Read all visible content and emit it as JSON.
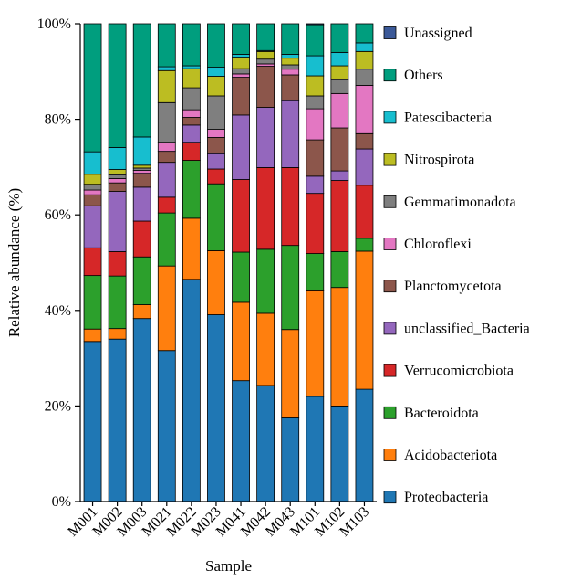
{
  "chart_data": {
    "type": "bar",
    "stacked": true,
    "percent": true,
    "xlabel": "Sample",
    "ylabel": "Relative abundance (%)",
    "ylim": [
      0,
      100
    ],
    "y_ticks": [
      "0%",
      "20%",
      "40%",
      "60%",
      "80%",
      "100%"
    ],
    "y_tick_values": [
      0,
      20,
      40,
      60,
      80,
      100
    ],
    "grid": false,
    "legend_position": "right",
    "categories": [
      "M001",
      "M002",
      "M003",
      "M021",
      "M022",
      "M023",
      "M041",
      "M042",
      "M043",
      "M101",
      "M102",
      "M103"
    ],
    "series": [
      {
        "name": "Proteobacteria",
        "color": "#1f77b4",
        "values": [
          33.5,
          34.0,
          38.3,
          31.6,
          46.5,
          39.1,
          25.3,
          24.3,
          17.5,
          22.0,
          20.0,
          23.5
        ]
      },
      {
        "name": "Acidobacteriota",
        "color": "#ff7f0e",
        "values": [
          2.6,
          2.2,
          2.9,
          17.7,
          12.8,
          13.4,
          16.4,
          15.1,
          18.5,
          22.1,
          24.8,
          28.9
        ]
      },
      {
        "name": "Bacteroidota",
        "color": "#2ca02c",
        "values": [
          11.2,
          11.0,
          10.0,
          11.1,
          12.1,
          14.0,
          10.5,
          13.4,
          17.6,
          7.8,
          7.5,
          2.7
        ]
      },
      {
        "name": "Verrucomicrobiota",
        "color": "#d62728",
        "values": [
          5.8,
          5.1,
          7.5,
          3.3,
          3.8,
          3.1,
          15.2,
          17.1,
          16.3,
          12.6,
          14.9,
          11.1
        ]
      },
      {
        "name": "unclassified_Bacteria",
        "color": "#9467bd",
        "values": [
          8.8,
          12.6,
          7.1,
          7.3,
          3.6,
          3.2,
          13.5,
          12.6,
          14.0,
          3.6,
          2.0,
          7.6
        ]
      },
      {
        "name": "Planctomycetota",
        "color": "#8c564b",
        "values": [
          2.3,
          1.8,
          2.9,
          2.3,
          1.6,
          3.4,
          7.9,
          8.6,
          5.4,
          7.6,
          9.0,
          3.2
        ]
      },
      {
        "name": "Chloroflexi",
        "color": "#e377c2",
        "values": [
          1.0,
          0.9,
          0.6,
          1.9,
          1.6,
          1.7,
          0.7,
          0.5,
          1.2,
          6.5,
          7.2,
          10.1
        ]
      },
      {
        "name": "Gemmatimonadota",
        "color": "#7f7f7f",
        "values": [
          1.2,
          0.8,
          0.5,
          8.3,
          4.6,
          7.0,
          1.1,
          1.0,
          0.9,
          2.7,
          2.9,
          3.4
        ]
      },
      {
        "name": "Nitrospirota",
        "color": "#bcbd22",
        "values": [
          2.1,
          1.1,
          0.6,
          6.7,
          4.0,
          4.1,
          2.4,
          1.6,
          1.4,
          4.2,
          2.9,
          3.7
        ]
      },
      {
        "name": "Patescibacteria",
        "color": "#17becf",
        "values": [
          4.7,
          4.6,
          5.9,
          0.8,
          0.6,
          1.9,
          0.6,
          0.2,
          0.8,
          4.2,
          2.8,
          1.8
        ]
      },
      {
        "name": "Others",
        "color": "#009e7e",
        "values": [
          26.8,
          25.9,
          23.7,
          9.0,
          8.8,
          9.1,
          6.4,
          5.6,
          6.4,
          6.5,
          6.0,
          4.0
        ]
      },
      {
        "name": "Unassigned",
        "color": "#3b5998",
        "values": [
          0,
          0,
          0,
          0,
          0,
          0,
          0,
          0,
          0,
          0.2,
          0,
          0
        ]
      }
    ]
  }
}
